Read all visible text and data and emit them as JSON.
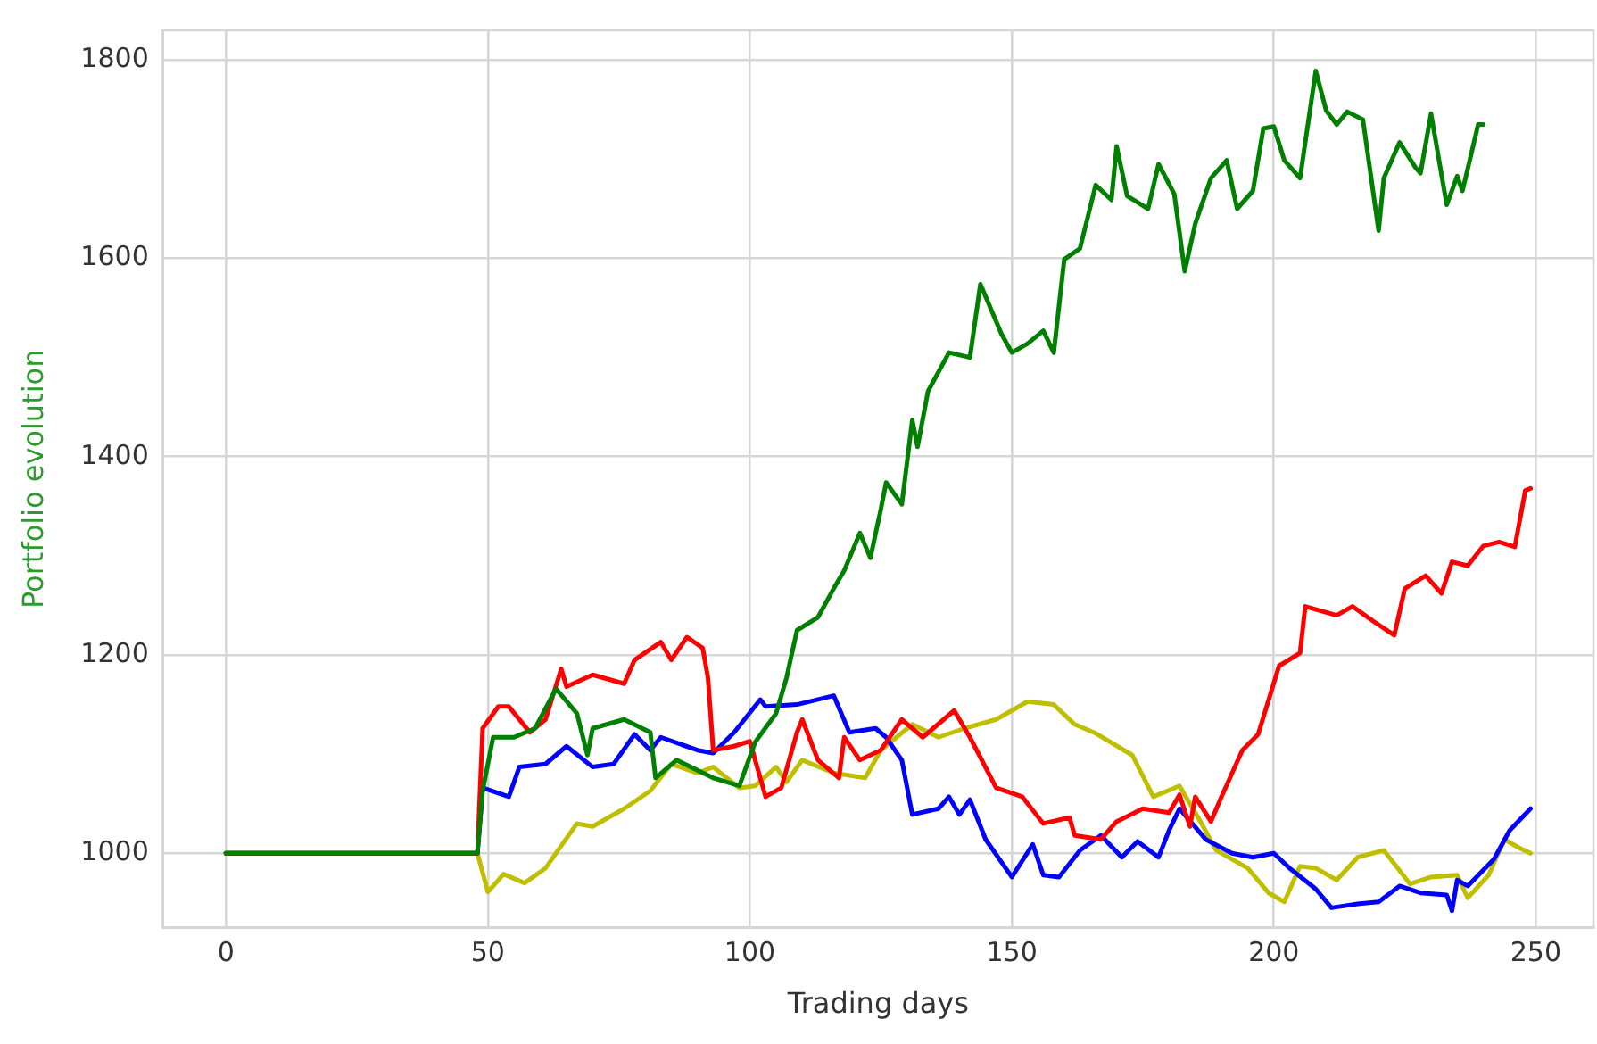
{
  "chart_data": {
    "type": "line",
    "xlabel": "Trading days",
    "ylabel": "Portfolio evolution",
    "xlim": [
      -12,
      261
    ],
    "ylim": [
      925,
      1830
    ],
    "xticks": [
      0,
      50,
      100,
      150,
      200,
      250
    ],
    "yticks": [
      1000,
      1200,
      1400,
      1600,
      1800
    ],
    "grid": true,
    "legend": false,
    "marker": "none",
    "line_style": "solid",
    "series": [
      {
        "color": "#008000",
        "x": [
          0,
          48,
          49,
          51,
          55,
          59,
          63,
          67,
          69,
          70,
          76,
          81,
          82,
          86,
          93,
          98,
          101,
          105,
          107,
          109,
          113,
          116,
          118,
          121,
          123,
          125,
          126,
          129,
          131,
          132,
          134,
          138,
          142,
          144,
          148,
          150,
          153,
          156,
          158,
          160,
          163,
          166,
          169,
          170,
          172,
          176,
          178,
          181,
          183,
          185,
          188,
          191,
          193,
          196,
          198,
          200,
          202,
          205,
          208,
          210,
          212,
          214,
          217,
          220,
          221,
          224,
          227,
          228,
          230,
          233,
          235,
          236,
          239,
          240
        ],
        "values": [
          1000,
          1000,
          1063,
          1117,
          1117,
          1126,
          1166,
          1141,
          1099,
          1126,
          1135,
          1122,
          1076,
          1094,
          1076,
          1068,
          1112,
          1141,
          1177,
          1225,
          1238,
          1267,
          1285,
          1323,
          1298,
          1347,
          1374,
          1352,
          1437,
          1410,
          1466,
          1505,
          1500,
          1574,
          1524,
          1505,
          1514,
          1527,
          1505,
          1599,
          1610,
          1674,
          1659,
          1713,
          1663,
          1650,
          1695,
          1665,
          1587,
          1635,
          1681,
          1699,
          1650,
          1668,
          1731,
          1733,
          1699,
          1681,
          1789,
          1749,
          1735,
          1748,
          1740,
          1628,
          1681,
          1717,
          1692,
          1686,
          1746,
          1654,
          1683,
          1668,
          1735,
          1735
        ]
      },
      {
        "color": "#ff0000",
        "x": [
          0,
          48,
          49,
          52,
          54,
          58,
          61,
          64,
          65,
          70,
          76,
          78,
          83,
          85,
          88,
          91,
          92,
          93,
          97,
          100,
          103,
          106,
          109,
          110,
          113,
          117,
          118,
          121,
          125,
          129,
          133,
          139,
          142,
          147,
          152,
          156,
          161,
          162,
          167,
          170,
          175,
          180,
          182,
          184,
          185,
          188,
          190,
          194,
          197,
          201,
          205,
          206,
          212,
          215,
          219,
          223,
          225,
          229,
          232,
          234,
          237,
          240,
          243,
          246,
          248,
          249
        ],
        "values": [
          1000,
          1000,
          1126,
          1148,
          1148,
          1122,
          1135,
          1186,
          1168,
          1180,
          1171,
          1195,
          1213,
          1195,
          1218,
          1207,
          1177,
          1104,
          1108,
          1113,
          1057,
          1066,
          1122,
          1135,
          1094,
          1076,
          1117,
          1094,
          1104,
          1135,
          1117,
          1144,
          1117,
          1066,
          1057,
          1030,
          1036,
          1018,
          1014,
          1032,
          1045,
          1041,
          1059,
          1027,
          1057,
          1032,
          1057,
          1104,
          1120,
          1189,
          1202,
          1249,
          1240,
          1249,
          1234,
          1220,
          1267,
          1280,
          1262,
          1294,
          1290,
          1310,
          1314,
          1309,
          1366,
          1368
        ]
      },
      {
        "color": "#0000ff",
        "x": [
          0,
          48,
          49,
          54,
          56,
          61,
          65,
          70,
          74,
          78,
          81,
          83,
          90,
          93,
          97,
          102,
          103,
          109,
          116,
          119,
          124,
          126,
          129,
          131,
          136,
          138,
          140,
          142,
          145,
          150,
          154,
          156,
          159,
          163,
          167,
          171,
          174,
          178,
          180,
          182,
          187,
          192,
          196,
          200,
          203,
          208,
          211,
          216,
          220,
          224,
          228,
          233,
          234,
          235,
          237,
          242,
          245,
          249
        ],
        "values": [
          1000,
          1000,
          1066,
          1057,
          1087,
          1090,
          1108,
          1087,
          1090,
          1120,
          1104,
          1117,
          1104,
          1101,
          1122,
          1155,
          1148,
          1150,
          1159,
          1122,
          1126,
          1117,
          1094,
          1039,
          1045,
          1057,
          1039,
          1054,
          1014,
          976,
          1009,
          978,
          976,
          1003,
          1018,
          996,
          1012,
          996,
          1023,
          1045,
          1014,
          1000,
          996,
          1000,
          985,
          964,
          945,
          949,
          951,
          967,
          960,
          958,
          942,
          973,
          967,
          994,
          1023,
          1045
        ]
      },
      {
        "color": "#bfbf00",
        "x": [
          0,
          48,
          50,
          53,
          57,
          61,
          67,
          70,
          76,
          81,
          85,
          90,
          93,
          98,
          101,
          105,
          107,
          110,
          116,
          122,
          125,
          131,
          136,
          141,
          147,
          153,
          158,
          162,
          166,
          173,
          177,
          182,
          186,
          189,
          195,
          199,
          202,
          205,
          208,
          212,
          216,
          221,
          226,
          230,
          235,
          237,
          241,
          244,
          247,
          249
        ],
        "values": [
          1000,
          1000,
          961,
          979,
          970,
          985,
          1030,
          1027,
          1045,
          1063,
          1090,
          1081,
          1087,
          1066,
          1068,
          1087,
          1072,
          1094,
          1081,
          1076,
          1104,
          1130,
          1117,
          1126,
          1135,
          1153,
          1150,
          1130,
          1121,
          1099,
          1057,
          1068,
          1032,
          1003,
          985,
          960,
          951,
          987,
          985,
          973,
          996,
          1003,
          969,
          976,
          978,
          955,
          978,
          1014,
          1005,
          1000
        ]
      }
    ]
  }
}
